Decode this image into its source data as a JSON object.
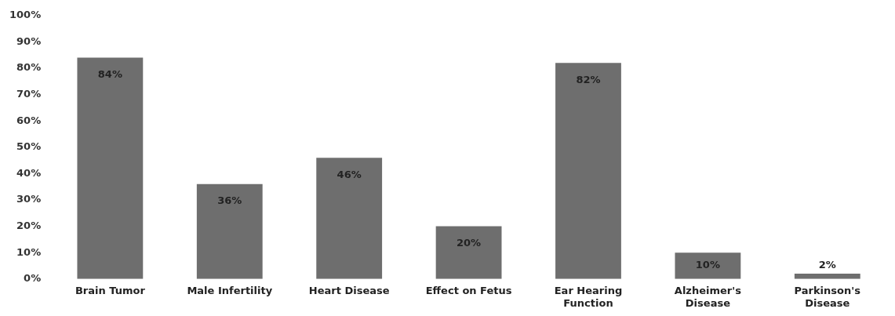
{
  "chart_data": {
    "type": "bar",
    "categories": [
      "Brain Tumor",
      "Male Infertility",
      "Heart Disease",
      "Effect on Fetus",
      "Ear Hearing\nFunction",
      "Alzheimer's\nDisease",
      "Parkinson's\nDisease"
    ],
    "values": [
      84,
      36,
      46,
      20,
      82,
      10,
      2
    ],
    "value_labels": [
      "84%",
      "36%",
      "46%",
      "20%",
      "82%",
      "10%",
      "2%"
    ],
    "color": "#6e6e6e",
    "ylim": [
      0,
      100
    ],
    "yticks": [
      {
        "value": 0,
        "label": "0%"
      },
      {
        "value": 10,
        "label": "10%"
      },
      {
        "value": 20,
        "label": "20%"
      },
      {
        "value": 30,
        "label": "30%"
      },
      {
        "value": 40,
        "label": "40%"
      },
      {
        "value": 50,
        "label": "50%"
      },
      {
        "value": 60,
        "label": "60%"
      },
      {
        "value": 70,
        "label": "70%"
      },
      {
        "value": 80,
        "label": "80%"
      },
      {
        "value": 90,
        "label": "90%"
      },
      {
        "value": 100,
        "label": "100%"
      }
    ],
    "grid": false,
    "legend": false
  }
}
